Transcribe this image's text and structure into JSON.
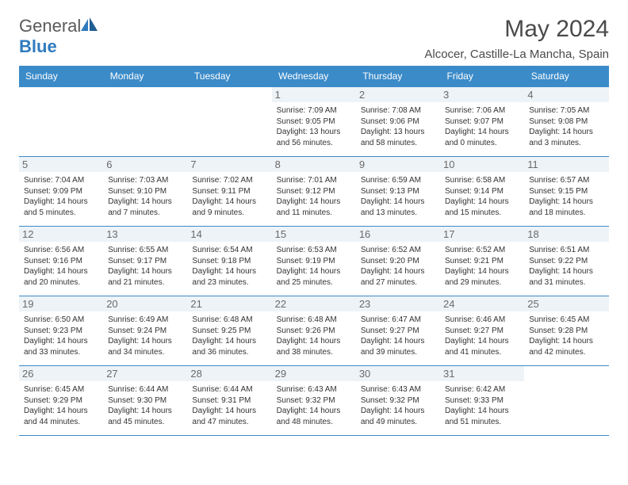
{
  "brand": {
    "part1": "General",
    "part2": "Blue"
  },
  "title": "May 2024",
  "location": "Alcocer, Castille-La Mancha, Spain",
  "colors": {
    "header_bg": "#3b8bc9",
    "header_text": "#ffffff",
    "daynum_bg": "#eef3f7",
    "border": "#3b8bc9",
    "brand_gray": "#5a5a5a",
    "brand_blue": "#2f7bbf"
  },
  "day_headers": [
    "Sunday",
    "Monday",
    "Tuesday",
    "Wednesday",
    "Thursday",
    "Friday",
    "Saturday"
  ],
  "weeks": [
    [
      {
        "n": "",
        "sr": "",
        "ss": "",
        "dl": "",
        "empty": true
      },
      {
        "n": "",
        "sr": "",
        "ss": "",
        "dl": "",
        "empty": true
      },
      {
        "n": "",
        "sr": "",
        "ss": "",
        "dl": "",
        "empty": true
      },
      {
        "n": "1",
        "sr": "7:09 AM",
        "ss": "9:05 PM",
        "dl": "13 hours and 56 minutes."
      },
      {
        "n": "2",
        "sr": "7:08 AM",
        "ss": "9:06 PM",
        "dl": "13 hours and 58 minutes."
      },
      {
        "n": "3",
        "sr": "7:06 AM",
        "ss": "9:07 PM",
        "dl": "14 hours and 0 minutes."
      },
      {
        "n": "4",
        "sr": "7:05 AM",
        "ss": "9:08 PM",
        "dl": "14 hours and 3 minutes."
      }
    ],
    [
      {
        "n": "5",
        "sr": "7:04 AM",
        "ss": "9:09 PM",
        "dl": "14 hours and 5 minutes."
      },
      {
        "n": "6",
        "sr": "7:03 AM",
        "ss": "9:10 PM",
        "dl": "14 hours and 7 minutes."
      },
      {
        "n": "7",
        "sr": "7:02 AM",
        "ss": "9:11 PM",
        "dl": "14 hours and 9 minutes."
      },
      {
        "n": "8",
        "sr": "7:01 AM",
        "ss": "9:12 PM",
        "dl": "14 hours and 11 minutes."
      },
      {
        "n": "9",
        "sr": "6:59 AM",
        "ss": "9:13 PM",
        "dl": "14 hours and 13 minutes."
      },
      {
        "n": "10",
        "sr": "6:58 AM",
        "ss": "9:14 PM",
        "dl": "14 hours and 15 minutes."
      },
      {
        "n": "11",
        "sr": "6:57 AM",
        "ss": "9:15 PM",
        "dl": "14 hours and 18 minutes."
      }
    ],
    [
      {
        "n": "12",
        "sr": "6:56 AM",
        "ss": "9:16 PM",
        "dl": "14 hours and 20 minutes."
      },
      {
        "n": "13",
        "sr": "6:55 AM",
        "ss": "9:17 PM",
        "dl": "14 hours and 21 minutes."
      },
      {
        "n": "14",
        "sr": "6:54 AM",
        "ss": "9:18 PM",
        "dl": "14 hours and 23 minutes."
      },
      {
        "n": "15",
        "sr": "6:53 AM",
        "ss": "9:19 PM",
        "dl": "14 hours and 25 minutes."
      },
      {
        "n": "16",
        "sr": "6:52 AM",
        "ss": "9:20 PM",
        "dl": "14 hours and 27 minutes."
      },
      {
        "n": "17",
        "sr": "6:52 AM",
        "ss": "9:21 PM",
        "dl": "14 hours and 29 minutes."
      },
      {
        "n": "18",
        "sr": "6:51 AM",
        "ss": "9:22 PM",
        "dl": "14 hours and 31 minutes."
      }
    ],
    [
      {
        "n": "19",
        "sr": "6:50 AM",
        "ss": "9:23 PM",
        "dl": "14 hours and 33 minutes."
      },
      {
        "n": "20",
        "sr": "6:49 AM",
        "ss": "9:24 PM",
        "dl": "14 hours and 34 minutes."
      },
      {
        "n": "21",
        "sr": "6:48 AM",
        "ss": "9:25 PM",
        "dl": "14 hours and 36 minutes."
      },
      {
        "n": "22",
        "sr": "6:48 AM",
        "ss": "9:26 PM",
        "dl": "14 hours and 38 minutes."
      },
      {
        "n": "23",
        "sr": "6:47 AM",
        "ss": "9:27 PM",
        "dl": "14 hours and 39 minutes."
      },
      {
        "n": "24",
        "sr": "6:46 AM",
        "ss": "9:27 PM",
        "dl": "14 hours and 41 minutes."
      },
      {
        "n": "25",
        "sr": "6:45 AM",
        "ss": "9:28 PM",
        "dl": "14 hours and 42 minutes."
      }
    ],
    [
      {
        "n": "26",
        "sr": "6:45 AM",
        "ss": "9:29 PM",
        "dl": "14 hours and 44 minutes."
      },
      {
        "n": "27",
        "sr": "6:44 AM",
        "ss": "9:30 PM",
        "dl": "14 hours and 45 minutes."
      },
      {
        "n": "28",
        "sr": "6:44 AM",
        "ss": "9:31 PM",
        "dl": "14 hours and 47 minutes."
      },
      {
        "n": "29",
        "sr": "6:43 AM",
        "ss": "9:32 PM",
        "dl": "14 hours and 48 minutes."
      },
      {
        "n": "30",
        "sr": "6:43 AM",
        "ss": "9:32 PM",
        "dl": "14 hours and 49 minutes."
      },
      {
        "n": "31",
        "sr": "6:42 AM",
        "ss": "9:33 PM",
        "dl": "14 hours and 51 minutes."
      },
      {
        "n": "",
        "sr": "",
        "ss": "",
        "dl": "",
        "empty": true
      }
    ]
  ],
  "labels": {
    "sunrise": "Sunrise: ",
    "sunset": "Sunset: ",
    "daylight": "Daylight: "
  }
}
